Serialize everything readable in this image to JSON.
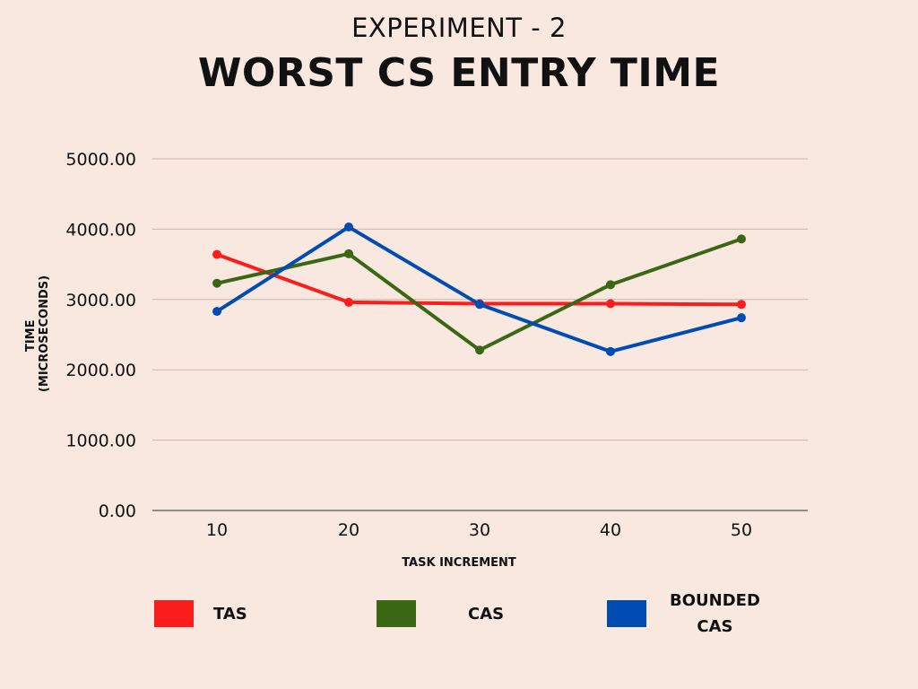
{
  "chart_data": {
    "type": "line",
    "subtitle": "EXPERIMENT - 2",
    "title": "WORST CS ENTRY TIME",
    "xlabel": "TASK INCREMENT",
    "ylabel_lines": [
      "TIME",
      "(MICROSECONDS)"
    ],
    "x": [
      10,
      20,
      30,
      40,
      50
    ],
    "y_ticks": [
      "0.00",
      "1000.00",
      "2000.00",
      "3000.00",
      "4000.00",
      "5000.00"
    ],
    "ylim": [
      0,
      5000
    ],
    "grid": true,
    "legend_position": "bottom",
    "series": [
      {
        "name": "TAS",
        "color": "#fb1c1c",
        "values": [
          3640,
          2960,
          2940,
          2940,
          2930
        ]
      },
      {
        "name": "CAS",
        "color": "#3a6714",
        "values": [
          3230,
          3650,
          2280,
          3210,
          3860
        ]
      },
      {
        "name": "BOUNDED CAS",
        "legend_lines": [
          "BOUNDED",
          "CAS"
        ],
        "color": "#014cb2",
        "values": [
          2830,
          4030,
          2930,
          2260,
          2740
        ]
      }
    ]
  }
}
